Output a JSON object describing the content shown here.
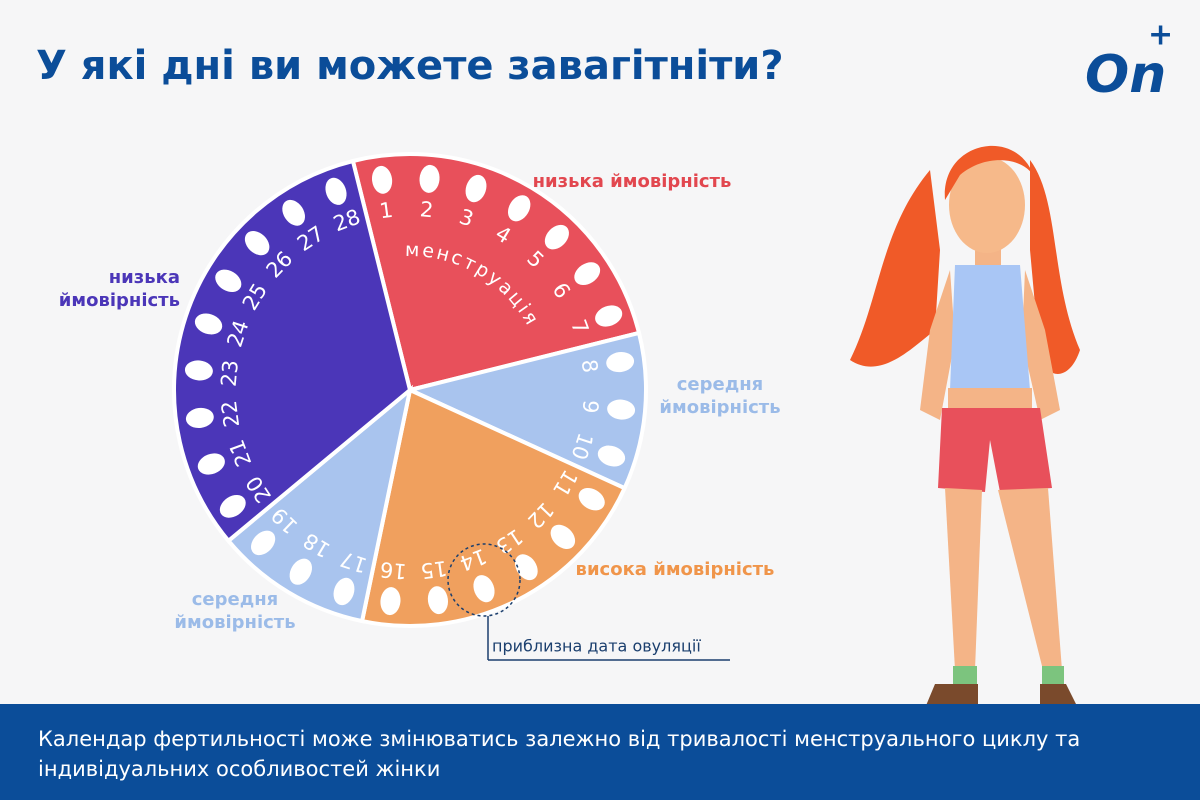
{
  "header": {
    "title": "У які дні ви можете завагітніти?",
    "logo": {
      "text": "On",
      "plus": "+"
    }
  },
  "wheel": {
    "segments": [
      {
        "label_lines": [
          "низька ймовірність"
        ],
        "color": "#e8505b",
        "label_color": "#e2474f",
        "days": [
          "1",
          "2",
          "3",
          "4",
          "5",
          "6",
          "7"
        ],
        "inner_label": "менструація"
      },
      {
        "label_lines": [
          "середня",
          "ймовірність"
        ],
        "color": "#a9c4ee",
        "label_color": "#9bbbe8",
        "days": [
          "8",
          "9",
          "10"
        ]
      },
      {
        "label_lines": [
          "висока ймовірність"
        ],
        "color": "#f0a05e",
        "label_color": "#f0954a",
        "days": [
          "11",
          "12",
          "13",
          "14",
          "15",
          "16"
        ]
      },
      {
        "label_lines": [
          "середня",
          "ймовірність"
        ],
        "color": "#a9c4ee",
        "label_color": "#9bbbe8",
        "days": [
          "17",
          "18",
          "19"
        ]
      },
      {
        "label_lines": [
          "низька",
          "ймовірність"
        ],
        "color": "#4b36b8",
        "label_color": "#4b36b8",
        "days": [
          "20",
          "21",
          "22",
          "23",
          "24",
          "25",
          "26",
          "27",
          "28"
        ]
      }
    ],
    "ovulation_note": "приблизна дата овуляції"
  },
  "footer": {
    "lines": [
      "Календар фертильності може змінюватись залежно від тривалості менструального циклу та",
      "індивідуальних особливостей жінки"
    ]
  }
}
